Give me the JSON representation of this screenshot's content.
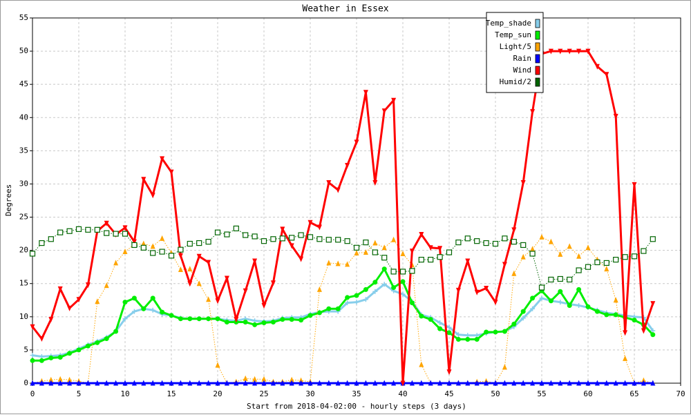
{
  "chart_data": {
    "type": "line",
    "title": "Weather in Essex",
    "x_label": "Start from 2018-04-02:00 - hourly steps (3 days)",
    "y_label": "Degrees",
    "x": [
      0,
      1,
      2,
      3,
      4,
      5,
      6,
      7,
      8,
      9,
      10,
      11,
      12,
      13,
      14,
      15,
      16,
      17,
      18,
      19,
      20,
      21,
      22,
      23,
      24,
      25,
      26,
      27,
      28,
      29,
      30,
      31,
      32,
      33,
      34,
      35,
      36,
      37,
      38,
      39,
      40,
      41,
      42,
      43,
      44,
      45,
      46,
      47,
      48,
      49,
      50,
      51,
      52,
      53,
      54,
      55,
      56,
      57,
      58,
      59,
      60,
      61,
      62,
      63,
      64,
      65,
      66,
      67
    ],
    "xlim": [
      0,
      70
    ],
    "xticks": [
      0,
      5,
      10,
      15,
      20,
      25,
      30,
      35,
      40,
      45,
      50,
      55,
      60,
      65,
      70
    ],
    "ylim": [
      0,
      55
    ],
    "yticks": [
      0,
      5,
      10,
      15,
      20,
      25,
      30,
      35,
      40,
      45,
      50,
      55
    ],
    "grid": true,
    "legend_position": "upper right",
    "series": [
      {
        "name": "Temp_shade",
        "color": "#87ceeb",
        "marker": "cross",
        "line_width": 3,
        "dashed": false,
        "values": [
          4.2,
          4,
          4.1,
          4.2,
          4.6,
          5.2,
          5.8,
          6.3,
          6.9,
          7.8,
          9.7,
          10.8,
          11.2,
          11,
          10.4,
          10.2,
          9.8,
          9.7,
          9.7,
          9.7,
          9.7,
          9.5,
          9.4,
          9.7,
          9.4,
          9.3,
          9.4,
          9.8,
          9.9,
          9.9,
          10.4,
          10.7,
          10.8,
          10.8,
          12.1,
          12.2,
          12.6,
          13.8,
          14.9,
          13.9,
          13.4,
          12.3,
          10.3,
          9.9,
          9.1,
          8.4,
          7.3,
          7.2,
          7.2,
          7.5,
          7.7,
          7.8,
          8.5,
          9.8,
          11.2,
          12.8,
          12.4,
          12.2,
          11.9,
          11.7,
          11.4,
          11,
          10.6,
          10.4,
          10.2,
          10,
          9.9,
          7.9
        ]
      },
      {
        "name": "Temp_sun",
        "color": "#00ee00",
        "marker": "circle",
        "line_width": 3,
        "dashed": false,
        "values": [
          3.4,
          3.4,
          3.8,
          3.9,
          4.5,
          5,
          5.6,
          6.1,
          6.7,
          7.8,
          12.2,
          12.8,
          11.2,
          12.8,
          10.7,
          10.2,
          9.7,
          9.7,
          9.7,
          9.7,
          9.7,
          9.2,
          9.2,
          9.2,
          8.8,
          9.1,
          9.2,
          9.6,
          9.6,
          9.5,
          10.2,
          10.6,
          11.2,
          11.2,
          12.9,
          13.2,
          14.1,
          15.2,
          17.2,
          14.4,
          15.3,
          12.1,
          10.1,
          9.6,
          8.2,
          7.6,
          6.6,
          6.6,
          6.6,
          7.7,
          7.7,
          7.8,
          8.9,
          10.8,
          12.8,
          13.9,
          12.4,
          13.8,
          11.7,
          14.1,
          11.5,
          10.8,
          10.3,
          10.3,
          9.9,
          9.5,
          8.8,
          7.3
        ]
      },
      {
        "name": "Light/5",
        "color": "#ffa500",
        "marker": "triangle-up",
        "line_width": 1,
        "dashed": true,
        "values": [
          0,
          0.3,
          0.5,
          0.6,
          0.5,
          0.3,
          0,
          12.3,
          14.7,
          18.1,
          19.8,
          20.9,
          21,
          20.6,
          21.8,
          19.6,
          17.1,
          17.2,
          15,
          12.6,
          2.7,
          0,
          0.2,
          0.7,
          0.6,
          0.6,
          0.2,
          0.2,
          0.5,
          0.4,
          0.2,
          14.1,
          18.1,
          18,
          17.9,
          19.6,
          19.7,
          21.1,
          20.4,
          21.6,
          19.5,
          17.8,
          2.8,
          0,
          0,
          0,
          0,
          0,
          0.2,
          0.3,
          0,
          2.4,
          16.5,
          19,
          20.2,
          22,
          21.3,
          19.4,
          20.6,
          19.1,
          20.4,
          18.6,
          17.2,
          12.5,
          3.7,
          0,
          0.4,
          0
        ]
      },
      {
        "name": "Rain",
        "color": "#0000ff",
        "marker": "triangle-up",
        "line_width": 3,
        "dashed": false,
        "values": [
          0,
          0,
          0,
          0,
          0,
          0,
          0,
          0,
          0,
          0,
          0,
          0,
          0,
          0,
          0,
          0,
          0,
          0,
          0,
          0,
          0,
          0,
          0,
          0,
          0,
          0,
          0,
          0,
          0,
          0,
          0,
          0,
          0,
          0,
          0,
          0,
          0,
          0,
          0,
          0,
          0,
          0,
          0,
          0,
          0,
          0,
          0,
          0,
          0,
          0,
          0,
          0,
          0,
          0,
          0,
          0,
          0,
          0,
          0,
          0,
          0,
          0,
          0,
          0,
          0,
          0,
          0,
          0
        ]
      },
      {
        "name": "Wind",
        "color": "#ff0000",
        "marker": "triangle-down",
        "line_width": 3,
        "dashed": false,
        "values": [
          8.5,
          6.7,
          9.6,
          14.2,
          11.3,
          12.6,
          14.8,
          22.9,
          24.1,
          22.4,
          23.4,
          21.3,
          30.7,
          28.3,
          33.8,
          31.8,
          19.2,
          15,
          19.1,
          18.2,
          12.4,
          15.8,
          9.6,
          13.9,
          18.4,
          11.7,
          15.1,
          23.2,
          20.7,
          18.7,
          24.2,
          23.5,
          30.2,
          29.1,
          32.8,
          36.3,
          43.8,
          30.2,
          41,
          42.6,
          0,
          19.9,
          22.4,
          20.4,
          20.3,
          1.7,
          14,
          18.4,
          13.7,
          14.3,
          12.2,
          17.9,
          23.1,
          30.2,
          40.9,
          49.6,
          50,
          50,
          50,
          50,
          50,
          47.7,
          46.5,
          40.2,
          7.6,
          29.9,
          7.9,
          12
        ]
      },
      {
        "name": "Humid/2",
        "color": "#006400",
        "marker": "square",
        "line_width": 1,
        "dashed": true,
        "values": [
          19.5,
          21.1,
          21.7,
          22.7,
          22.9,
          23.2,
          23.1,
          23.1,
          22.6,
          22.5,
          22.5,
          20.8,
          20.4,
          19.6,
          19.8,
          19.2,
          20.1,
          21,
          21.1,
          21.3,
          22.7,
          22.4,
          23.3,
          22.3,
          22.1,
          21.4,
          21.7,
          21.8,
          21.9,
          22.3,
          22,
          21.7,
          21.6,
          21.6,
          21.4,
          20.4,
          21.2,
          19.7,
          18.9,
          16.8,
          16.8,
          16.9,
          18.6,
          18.6,
          19,
          19.7,
          21.2,
          21.8,
          21.4,
          21.1,
          21,
          21.8,
          21.3,
          20.8,
          19.5,
          14.4,
          15.6,
          15.7,
          15.6,
          17,
          17.5,
          18.2,
          18.1,
          18.6,
          19,
          19.1,
          19.9,
          21.7
        ]
      }
    ]
  }
}
